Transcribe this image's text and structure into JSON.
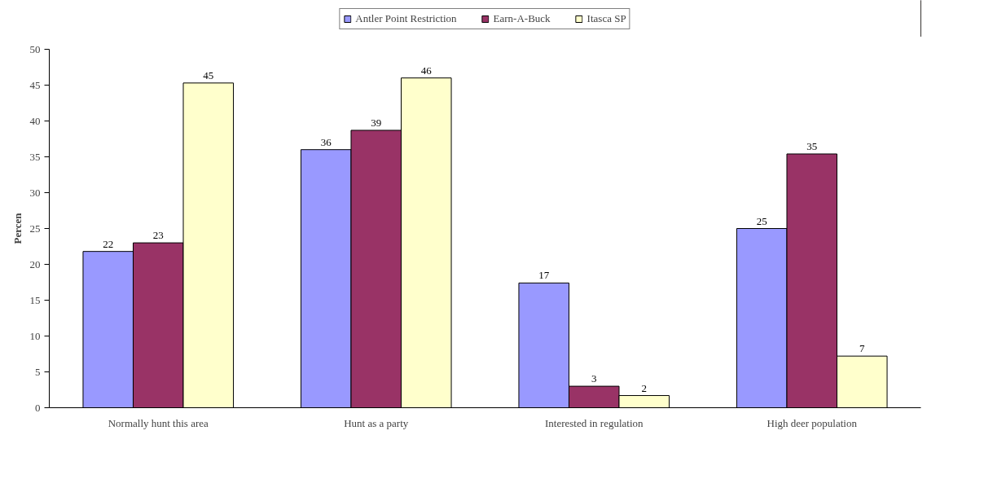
{
  "chart_data": {
    "type": "bar",
    "ylabel": "Percen",
    "categories": [
      "Normally hunt this area",
      "Hunt as a party",
      "Interested in regulation",
      "High deer population"
    ],
    "series": [
      {
        "name": "Antler Point Restriction",
        "color": "#9999ff",
        "values": [
          21.8,
          36,
          17.4,
          25
        ],
        "value_labels": [
          "22",
          "36",
          "17",
          "25"
        ]
      },
      {
        "name": "Earn-A-Buck",
        "color": "#993366",
        "values": [
          23,
          38.7,
          3,
          35.4
        ],
        "value_labels": [
          "23",
          "39",
          "3",
          "35"
        ]
      },
      {
        "name": "Itasca SP",
        "color": "#ffffcc",
        "values": [
          45.3,
          46,
          1.7,
          7.2
        ],
        "value_labels": [
          "45",
          "46",
          "2",
          "7"
        ]
      }
    ],
    "ylim": [
      0,
      50
    ],
    "yticks": [
      0,
      5,
      10,
      15,
      20,
      25,
      30,
      35,
      40,
      45,
      50
    ],
    "grid": false,
    "legend": "top"
  }
}
